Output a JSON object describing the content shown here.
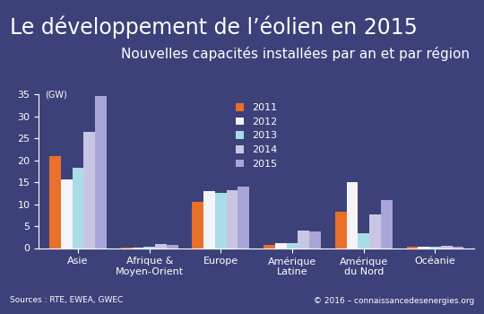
{
  "chart_data": {
    "type": "bar",
    "title": "Le développement de l’éolien en 2015",
    "subtitle": "Nouvelles capacités installées par an et par région",
    "y_label": "(GW)",
    "annotations": [
      "Sources : RTE, EWEA, GWEC",
      "© 2016 – connaissancedesenergies.org"
    ],
    "categories": [
      "Asie",
      "Afrique & Moyen-Orient",
      "Europe",
      "Amérique Latine",
      "Amérique du Nord",
      "Océanie"
    ],
    "series": [
      {
        "name": "2011",
        "color": "#e8702a",
        "values": [
          21.0,
          0.2,
          10.6,
          0.8,
          8.3,
          0.3
        ]
      },
      {
        "name": "2012",
        "color": "#f4f4f8",
        "values": [
          15.6,
          0.2,
          12.9,
          1.2,
          14.9,
          0.3
        ]
      },
      {
        "name": "2013",
        "color": "#a8dde8",
        "values": [
          18.3,
          0.4,
          12.5,
          1.2,
          3.3,
          0.4
        ]
      },
      {
        "name": "2014",
        "color": "#c9c6e4",
        "values": [
          26.4,
          0.9,
          13.1,
          4.0,
          7.6,
          0.5
        ]
      },
      {
        "name": "2015",
        "color": "#a9a5d8",
        "values": [
          34.5,
          0.7,
          13.9,
          3.8,
          11.0,
          0.4
        ]
      }
    ],
    "ylim": [
      0,
      35
    ],
    "yticks": [
      0,
      5,
      10,
      15,
      20,
      25,
      30,
      35
    ],
    "grid": false,
    "legend": "upper center"
  }
}
